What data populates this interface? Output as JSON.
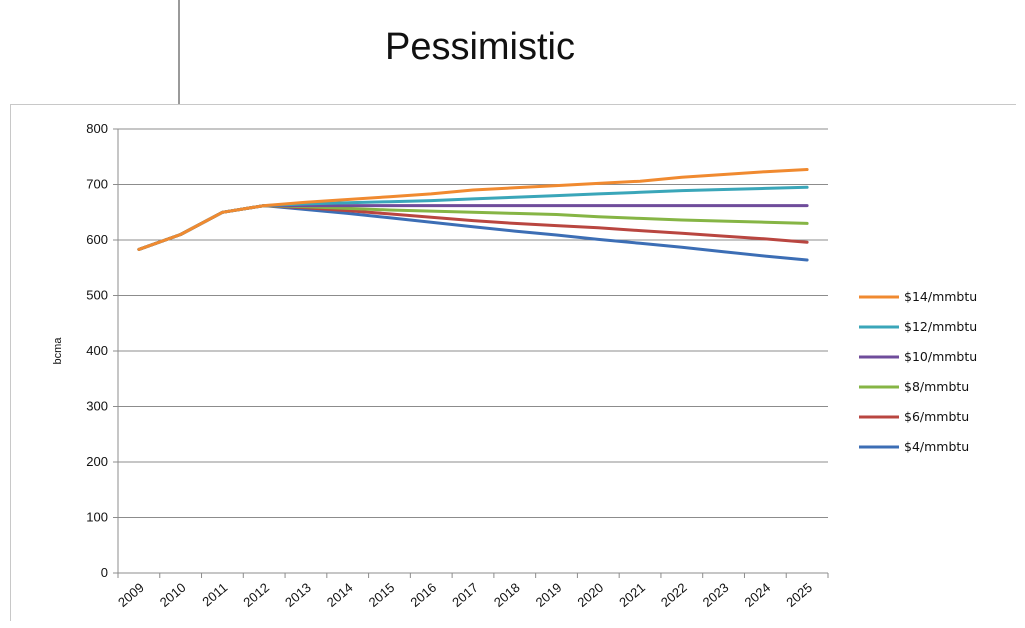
{
  "slide": {
    "title": "Pessimistic"
  },
  "chart_data": {
    "type": "line",
    "title": "",
    "xlabel": "",
    "ylabel": "bcma",
    "ylim": [
      0,
      800
    ],
    "yticks": [
      0,
      100,
      200,
      300,
      400,
      500,
      600,
      700,
      800
    ],
    "grid": "horizontal",
    "legend_position": "right",
    "x": [
      "2009",
      "2010",
      "2011",
      "2012",
      "2013",
      "2014",
      "2015",
      "2016",
      "2017",
      "2018",
      "2019",
      "2020",
      "2021",
      "2022",
      "2023",
      "2024",
      "2025"
    ],
    "series": [
      {
        "name": "$14/mmbtu",
        "color": "#f08a30",
        "values": [
          583,
          610,
          650,
          662,
          668,
          673,
          678,
          683,
          690,
          694,
          698,
          702,
          706,
          713,
          718,
          723,
          727
        ]
      },
      {
        "name": "$12/mmbtu",
        "color": "#3aa6b9",
        "values": [
          583,
          610,
          650,
          662,
          665,
          667,
          669,
          671,
          674,
          677,
          680,
          683,
          686,
          689,
          691,
          693,
          695
        ]
      },
      {
        "name": "$10/mmbtu",
        "color": "#6f4c9b",
        "values": [
          583,
          610,
          650,
          662,
          662,
          662,
          662,
          662,
          662,
          662,
          662,
          662,
          662,
          662,
          662,
          662,
          662
        ]
      },
      {
        "name": "$8/mmbtu",
        "color": "#86b545",
        "values": [
          583,
          610,
          650,
          662,
          660,
          657,
          654,
          652,
          650,
          648,
          646,
          642,
          639,
          636,
          634,
          632,
          630
        ]
      },
      {
        "name": "$6/mmbtu",
        "color": "#b94640",
        "values": [
          583,
          610,
          650,
          662,
          658,
          653,
          647,
          641,
          635,
          630,
          626,
          622,
          617,
          612,
          607,
          602,
          596
        ]
      },
      {
        "name": "$4/mmbtu",
        "color": "#3c6eb5",
        "values": [
          583,
          610,
          650,
          662,
          655,
          648,
          640,
          632,
          624,
          616,
          609,
          601,
          594,
          587,
          579,
          571,
          564
        ]
      }
    ]
  }
}
